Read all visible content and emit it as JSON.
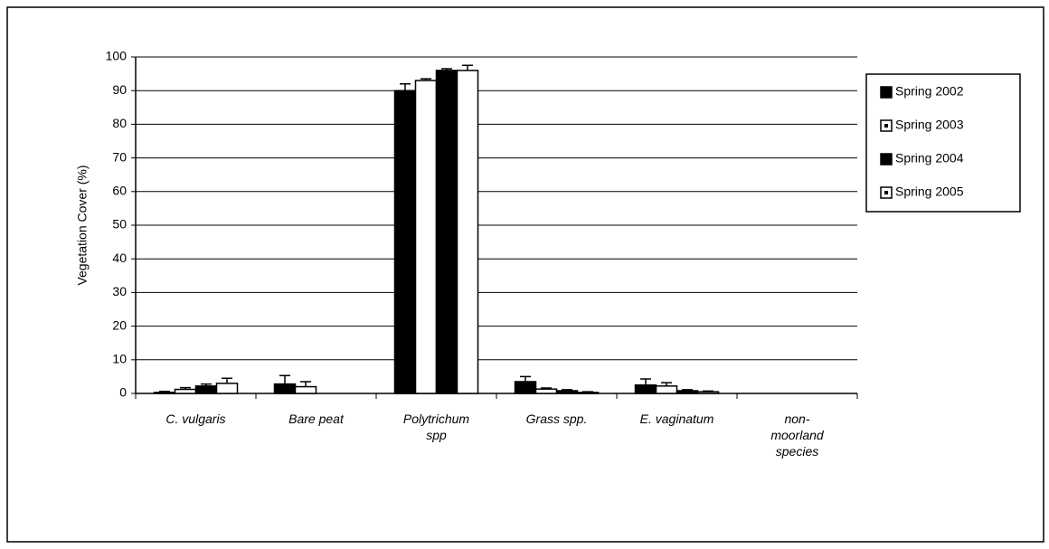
{
  "chart_data": {
    "type": "bar",
    "y_label": "Vegetation Cover (%)",
    "categories": [
      "C. vulgaris",
      "Bare peat",
      "Polytrichum spp",
      "Grass spp.",
      "E. vaginatum",
      "non-moorland species"
    ],
    "series": [
      {
        "name": "Spring 2002",
        "color": "#000000",
        "values": [
          0.3,
          2.8,
          90,
          3.5,
          2.5,
          0
        ],
        "errors": [
          0.3,
          2.5,
          2,
          1.5,
          1.8,
          0
        ]
      },
      {
        "name": "Spring 2003",
        "color": "#ffffff",
        "values": [
          1.2,
          2.0,
          93,
          1.3,
          2.2,
          0
        ],
        "errors": [
          0.5,
          1.5,
          0.5,
          0.3,
          1.0,
          0
        ]
      },
      {
        "name": "Spring 2004",
        "color": "#000000",
        "values": [
          2.2,
          0,
          96,
          0.8,
          0.8,
          0
        ],
        "errors": [
          0.6,
          0,
          0.5,
          0.3,
          0.3,
          0
        ]
      },
      {
        "name": "Spring 2005",
        "color": "#ffffff",
        "values": [
          3.0,
          0,
          96,
          0.3,
          0.5,
          0
        ],
        "errors": [
          1.5,
          0,
          1.5,
          0.2,
          0.2,
          0
        ]
      }
    ],
    "ylim": [
      0,
      100
    ],
    "yticks": [
      0,
      10,
      20,
      30,
      40,
      50,
      60,
      70,
      80,
      90,
      100
    ],
    "grid": true,
    "legend": "right"
  }
}
